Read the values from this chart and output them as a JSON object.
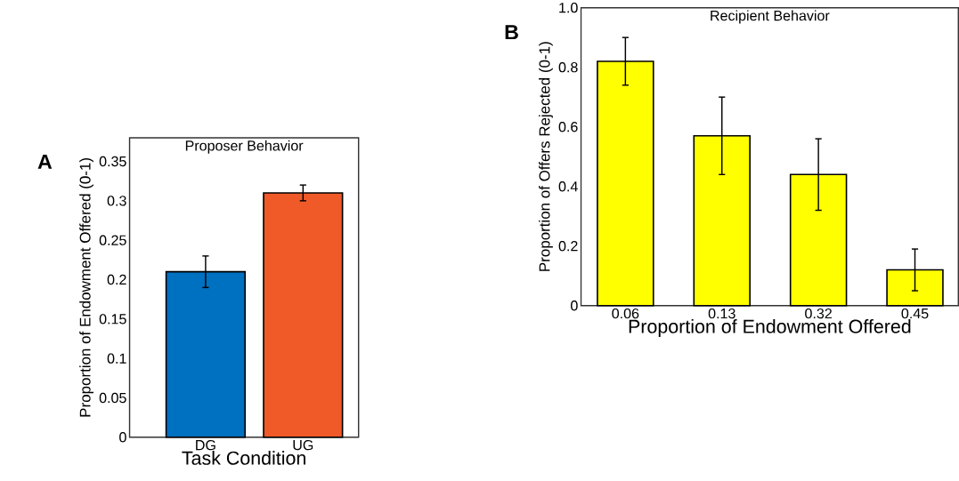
{
  "chart_data": [
    {
      "type": "bar",
      "title": "Proposer Behavior",
      "xlabel": "Task Condition",
      "ylabel": "Proportion of Endowment Offered (0-1)",
      "categories": [
        "DG",
        "UG"
      ],
      "values": [
        0.21,
        0.31
      ],
      "errors": [
        0.02,
        0.01
      ],
      "colors": [
        "#0070c0",
        "#f05a28"
      ],
      "ylim": [
        0,
        0.38
      ],
      "yticks": [
        0,
        0.05,
        0.1,
        0.15,
        0.2,
        0.25,
        0.3,
        0.35
      ],
      "annotations": [
        "A"
      ]
    },
    {
      "type": "bar",
      "title": "Recipient Behavior",
      "xlabel": "Proportion of Endowment Offered",
      "ylabel": "Proportion of Offers Rejected (0-1)",
      "categories": [
        "0.06",
        "0.13",
        "0.32",
        "0.45"
      ],
      "values": [
        0.82,
        0.57,
        0.44,
        0.12
      ],
      "errors": [
        0.08,
        0.13,
        0.12,
        0.07
      ],
      "color": "#ffff00",
      "ylim": [
        0,
        1.0
      ],
      "yticks": [
        0,
        0.2,
        0.4,
        0.6,
        0.8,
        {
          "value": 1.0,
          "label": "1.0"
        }
      ],
      "annotations": [
        "B"
      ]
    }
  ]
}
